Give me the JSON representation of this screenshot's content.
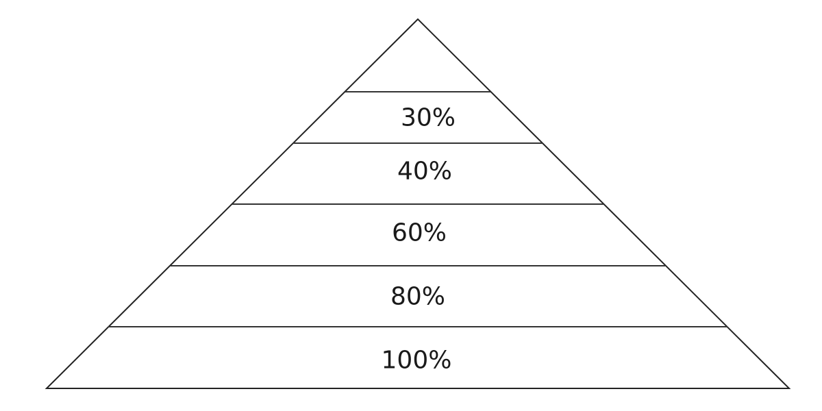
{
  "pyramid": {
    "line_color": "#222222",
    "tier_line_color": "#333333",
    "background": "#ffffff",
    "tiers": [
      {
        "label": ""
      },
      {
        "label": "30%"
      },
      {
        "label": "40%"
      },
      {
        "label": "60%"
      },
      {
        "label": "80%"
      },
      {
        "label": "100%"
      }
    ]
  }
}
